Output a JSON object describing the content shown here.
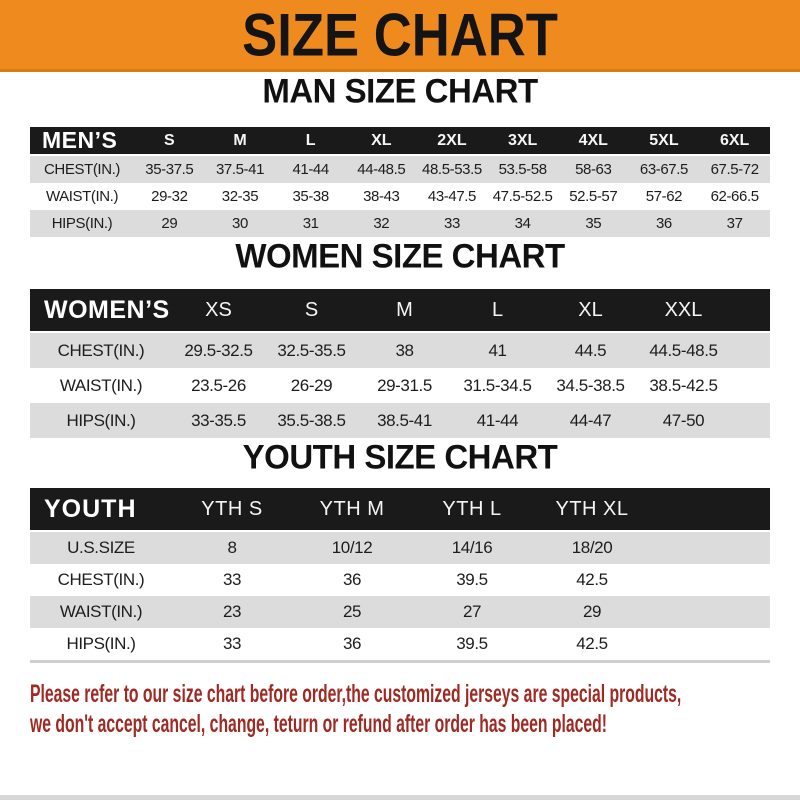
{
  "banner": {
    "title": "SIZE CHART"
  },
  "men": {
    "title": "MAN SIZE CHART",
    "header_label": "MEN’S",
    "columns": [
      "S",
      "M",
      "L",
      "XL",
      "2XL",
      "3XL",
      "4XL",
      "5XL",
      "6XL"
    ],
    "rows": [
      {
        "label": "CHEST(IN.)",
        "values": [
          "35-37.5",
          "37.5-41",
          "41-44",
          "44-48.5",
          "48.5-53.5",
          "53.5-58",
          "58-63",
          "63-67.5",
          "67.5-72"
        ]
      },
      {
        "label": "WAIST(IN.)",
        "values": [
          "29-32",
          "32-35",
          "35-38",
          "38-43",
          "43-47.5",
          "47.5-52.5",
          "52.5-57",
          "57-62",
          "62-66.5"
        ]
      },
      {
        "label": "HIPS(IN.)",
        "values": [
          "29",
          "30",
          "31",
          "32",
          "33",
          "34",
          "35",
          "36",
          "37"
        ]
      }
    ]
  },
  "women": {
    "title": "WOMEN SIZE CHART",
    "header_label": "WOMEN’S",
    "columns": [
      "XS",
      "S",
      "M",
      "L",
      "XL",
      "XXL"
    ],
    "rows": [
      {
        "label": "CHEST(IN.)",
        "values": [
          "29.5-32.5",
          "32.5-35.5",
          "38",
          "41",
          "44.5",
          "44.5-48.5"
        ]
      },
      {
        "label": "WAIST(IN.)",
        "values": [
          "23.5-26",
          "26-29",
          "29-31.5",
          "31.5-34.5",
          "34.5-38.5",
          "38.5-42.5"
        ]
      },
      {
        "label": "HIPS(IN.)",
        "values": [
          "33-35.5",
          "35.5-38.5",
          "38.5-41",
          "41-44",
          "44-47",
          "47-50"
        ]
      }
    ]
  },
  "youth": {
    "title": "YOUTH SIZE CHART",
    "header_label": "YOUTH",
    "columns": [
      "YTH S",
      "YTH M",
      "YTH L",
      "YTH XL"
    ],
    "rows": [
      {
        "label": "U.S.SIZE",
        "values": [
          "8",
          "10/12",
          "14/16",
          "18/20"
        ]
      },
      {
        "label": "CHEST(IN.)",
        "values": [
          "33",
          "36",
          "39.5",
          "42.5"
        ]
      },
      {
        "label": "WAIST(IN.)",
        "values": [
          "23",
          "25",
          "27",
          "29"
        ]
      },
      {
        "label": "HIPS(IN.)",
        "values": [
          "33",
          "36",
          "39.5",
          "42.5"
        ]
      }
    ]
  },
  "note": {
    "line1": "Please refer to our size chart before order,the customized jerseys are special products,",
    "line2": "we don't accept cancel, change, teturn or refund after order has been placed!"
  },
  "colors": {
    "banner_orange": "#EF8A1F",
    "header_black": "#1A1A1A",
    "row_gray": "#DCDCDC",
    "note_red": "#9E2A23"
  }
}
